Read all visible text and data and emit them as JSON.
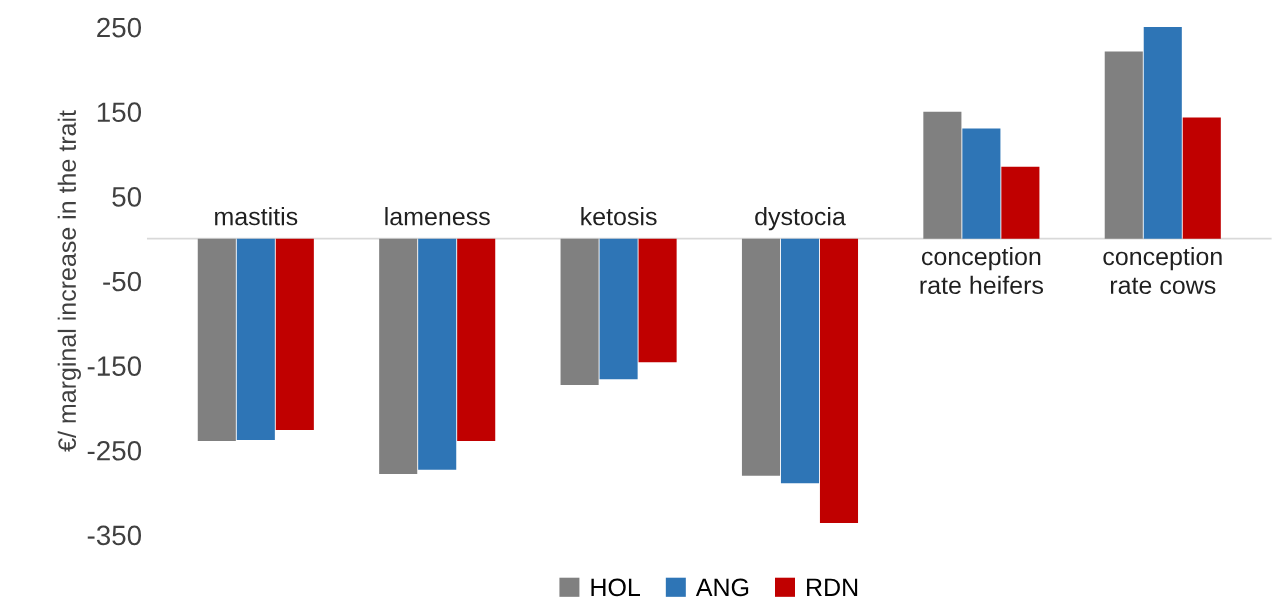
{
  "chart_data": {
    "type": "bar",
    "ylabel": "€/ marginal increase in the trait",
    "categories": [
      "mastitis",
      "lameness",
      "ketosis",
      "dystocia",
      "conception\nrate heifers",
      "conception\nrate cows"
    ],
    "series": [
      {
        "name": "HOL",
        "color": "#808080",
        "values": [
          -239,
          -278,
          -173,
          -280,
          150,
          221
        ]
      },
      {
        "name": "ANG",
        "color": "#2e75b6",
        "values": [
          -238,
          -273,
          -166,
          -289,
          130,
          250
        ]
      },
      {
        "name": "RDN",
        "color": "#c00000",
        "values": [
          -226,
          -239,
          -146,
          -336,
          85,
          143
        ]
      }
    ],
    "ylim": [
      -350,
      250
    ],
    "yticks": [
      -350,
      -250,
      -150,
      -50,
      50,
      150,
      250
    ],
    "grid": false,
    "legend": "bottom"
  }
}
